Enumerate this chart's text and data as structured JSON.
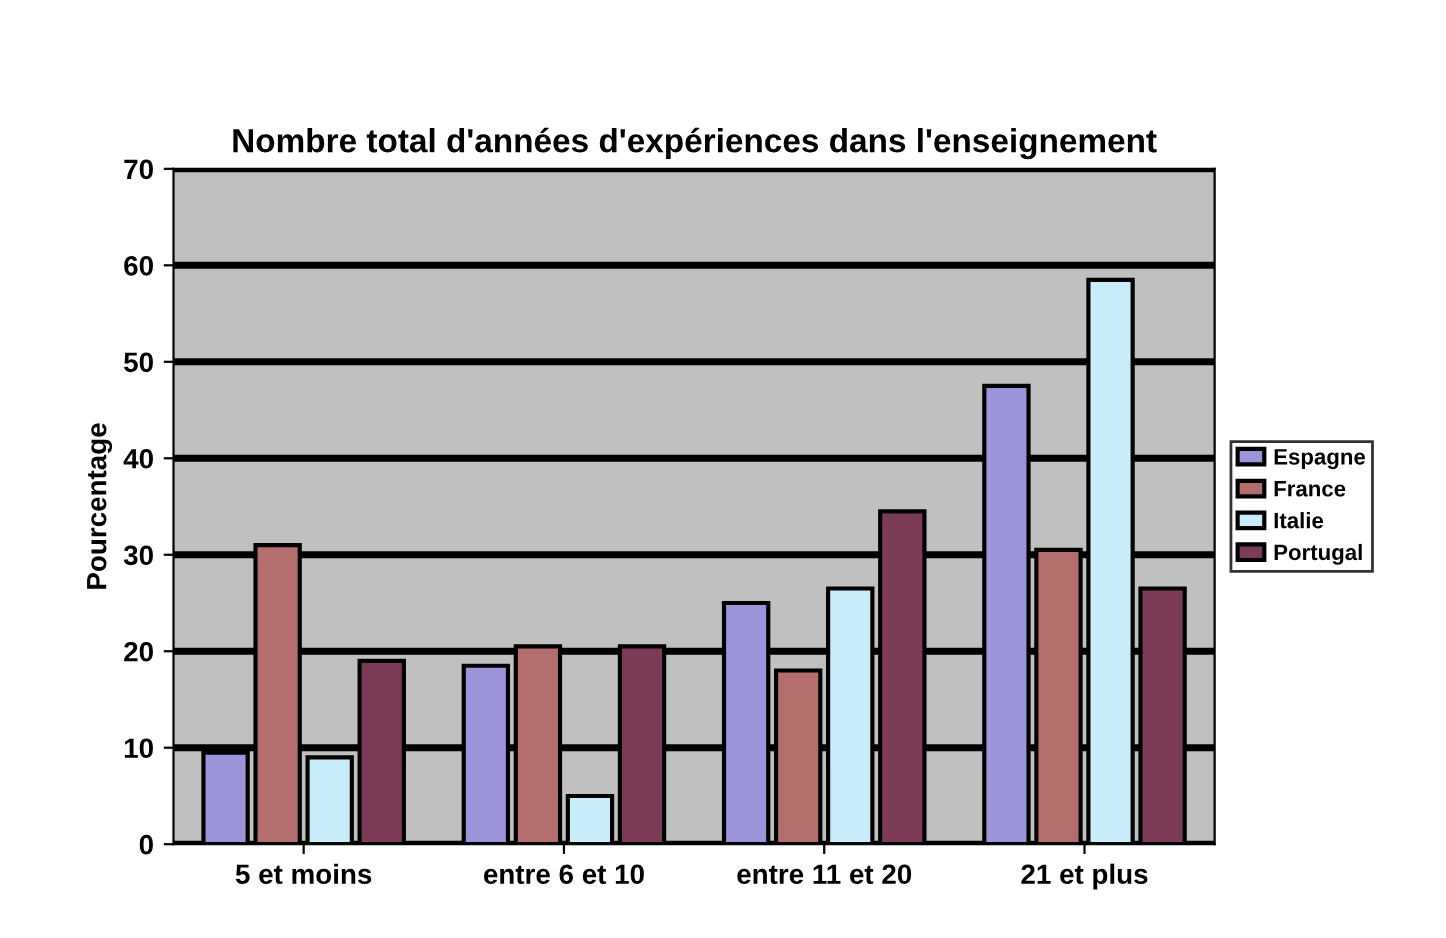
{
  "chart_data": {
    "type": "bar",
    "title": "Nombre total d'années d'expériences dans l'enseignement",
    "ylabel": "Pourcentage",
    "categories": [
      "5 et moins",
      "entre 6 et 10",
      "entre 11 et 20",
      "21 et plus"
    ],
    "series": [
      {
        "name": "Espagne",
        "color": "#9c94d8",
        "values": [
          9.5,
          18.5,
          25,
          47.5
        ]
      },
      {
        "name": "France",
        "color": "#b46e6e",
        "values": [
          31,
          20.5,
          18,
          30.5
        ]
      },
      {
        "name": "Italie",
        "color": "#c8ecfa",
        "values": [
          9,
          5,
          26.5,
          58.5
        ]
      },
      {
        "name": "Portugal",
        "color": "#7c3c58",
        "values": [
          19,
          20.5,
          34.5,
          26.5
        ]
      }
    ],
    "ylim": [
      0,
      70
    ],
    "yticks": [
      0,
      10,
      20,
      30,
      40,
      50,
      60,
      70
    ],
    "grid": "y",
    "legend": "right"
  }
}
